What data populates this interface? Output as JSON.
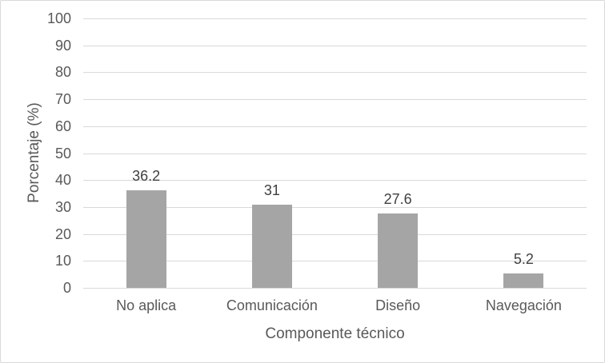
{
  "chart_data": {
    "type": "bar",
    "title": "",
    "categories": [
      "No aplica",
      "Comunicación",
      "Diseño",
      "Navegación"
    ],
    "values": [
      36.2,
      31,
      27.6,
      5.2
    ],
    "data_labels": [
      "36.2",
      "31",
      "27.6",
      "5.2"
    ],
    "xlabel": "Componente técnico",
    "ylabel": "Porcentaje (%)",
    "ylim": [
      0,
      100
    ],
    "ytick_step": 10,
    "ytick_labels": [
      "0",
      "10",
      "20",
      "30",
      "40",
      "50",
      "60",
      "70",
      "80",
      "90",
      "100"
    ],
    "grid": "horizontal",
    "legend": "none",
    "colors": {
      "bar_fill": "#a5a5a5",
      "gridline": "#d9d9d9",
      "axis_line": "#d9d9d9",
      "axis_text": "#595959",
      "data_label_text": "#404040",
      "chart_border": "#d9d9d9",
      "background": "#ffffff"
    }
  }
}
